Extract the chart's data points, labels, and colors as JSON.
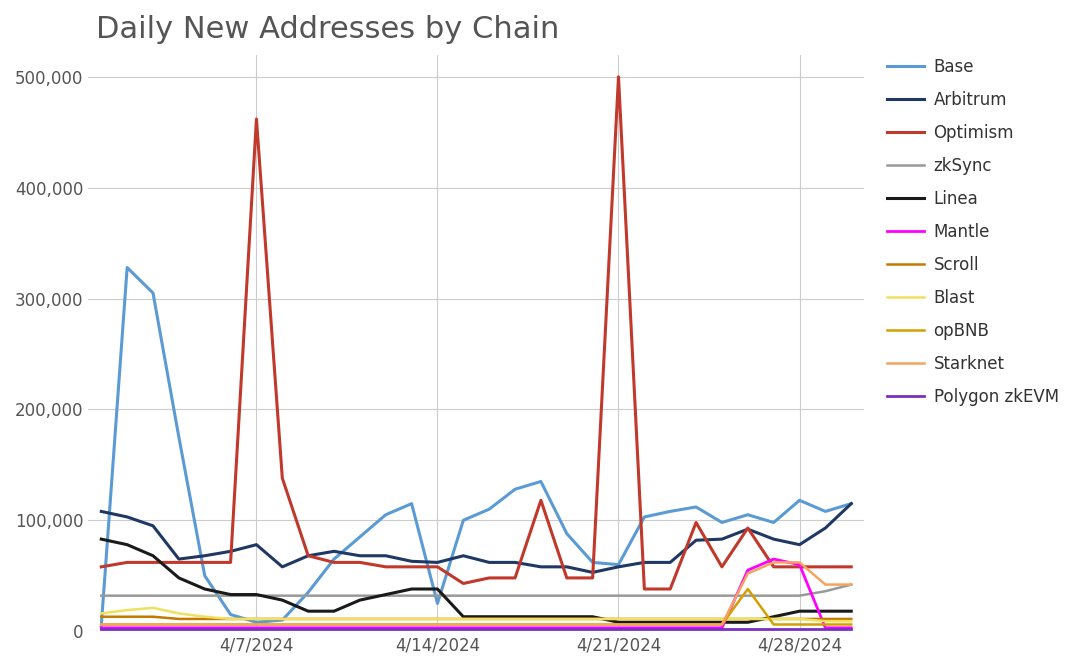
{
  "title": "Daily New Addresses by Chain",
  "title_fontsize": 22,
  "background_color": "#ffffff",
  "dates_count": 30,
  "xtick_positions": [
    6,
    13,
    20,
    27
  ],
  "xtick_labels": [
    "4/7/2024",
    "4/14/2024",
    "4/21/2024",
    "4/28/2024"
  ],
  "ylim": [
    0,
    520000
  ],
  "yticks": [
    0,
    100000,
    200000,
    300000,
    400000,
    500000
  ],
  "series": [
    {
      "name": "Base",
      "color": "#5b9bd5",
      "linewidth": 2.2,
      "values": [
        5000,
        328000,
        305000,
        175000,
        50000,
        15000,
        8000,
        10000,
        35000,
        65000,
        85000,
        105000,
        115000,
        25000,
        100000,
        110000,
        128000,
        135000,
        88000,
        62000,
        60000,
        103000,
        108000,
        112000,
        98000,
        105000,
        98000,
        118000,
        108000,
        115000
      ]
    },
    {
      "name": "Arbitrum",
      "color": "#1f3864",
      "linewidth": 2.2,
      "values": [
        108000,
        103000,
        95000,
        65000,
        68000,
        72000,
        78000,
        58000,
        68000,
        72000,
        68000,
        68000,
        63000,
        62000,
        68000,
        62000,
        62000,
        58000,
        58000,
        53000,
        58000,
        62000,
        62000,
        82000,
        83000,
        92000,
        83000,
        78000,
        93000,
        115000
      ]
    },
    {
      "name": "Optimism",
      "color": "#c0392b",
      "linewidth": 2.2,
      "values": [
        58000,
        62000,
        62000,
        62000,
        62000,
        62000,
        462000,
        138000,
        68000,
        62000,
        62000,
        58000,
        58000,
        58000,
        43000,
        48000,
        48000,
        118000,
        48000,
        48000,
        500000,
        38000,
        38000,
        98000,
        58000,
        93000,
        58000,
        58000,
        58000,
        58000
      ]
    },
    {
      "name": "zkSync",
      "color": "#999999",
      "linewidth": 1.8,
      "values": [
        32000,
        32000,
        32000,
        32000,
        32000,
        32000,
        32000,
        32000,
        32000,
        32000,
        32000,
        32000,
        32000,
        32000,
        32000,
        32000,
        32000,
        32000,
        32000,
        32000,
        32000,
        32000,
        32000,
        32000,
        32000,
        32000,
        32000,
        32000,
        36000,
        42000
      ]
    },
    {
      "name": "Linea",
      "color": "#1a1a1a",
      "linewidth": 2.2,
      "values": [
        83000,
        78000,
        68000,
        48000,
        38000,
        33000,
        33000,
        28000,
        18000,
        18000,
        28000,
        33000,
        38000,
        38000,
        13000,
        13000,
        13000,
        13000,
        13000,
        13000,
        8000,
        8000,
        8000,
        8000,
        8000,
        8000,
        13000,
        18000,
        18000,
        18000
      ]
    },
    {
      "name": "Mantle",
      "color": "#ff00ff",
      "linewidth": 2.0,
      "values": [
        3000,
        3000,
        3000,
        3000,
        3000,
        3000,
        3000,
        3000,
        3000,
        3000,
        3000,
        3000,
        3000,
        3000,
        3000,
        3000,
        3000,
        3000,
        3000,
        3000,
        3000,
        3000,
        3000,
        3000,
        3000,
        55000,
        65000,
        60000,
        3000,
        3000
      ]
    },
    {
      "name": "Scroll",
      "color": "#c47a00",
      "linewidth": 1.8,
      "values": [
        13000,
        13000,
        13000,
        11000,
        11000,
        11000,
        11000,
        11000,
        11000,
        11000,
        11000,
        11000,
        11000,
        11000,
        11000,
        11000,
        11000,
        11000,
        11000,
        11000,
        11000,
        11000,
        11000,
        11000,
        11000,
        11000,
        11000,
        11000,
        11000,
        11000
      ]
    },
    {
      "name": "Blast",
      "color": "#f0e060",
      "linewidth": 1.8,
      "values": [
        16000,
        19000,
        21000,
        16000,
        13000,
        11000,
        11000,
        11000,
        11000,
        11000,
        11000,
        11000,
        11000,
        11000,
        11000,
        11000,
        11000,
        11000,
        11000,
        11000,
        11000,
        11000,
        11000,
        11000,
        11000,
        11000,
        11000,
        11000,
        9000,
        9000
      ]
    },
    {
      "name": "opBNB",
      "color": "#d4a000",
      "linewidth": 1.8,
      "values": [
        6000,
        6000,
        6000,
        6000,
        6000,
        6000,
        6000,
        6000,
        6000,
        6000,
        6000,
        6000,
        6000,
        6000,
        6000,
        6000,
        6000,
        6000,
        6000,
        6000,
        6000,
        6000,
        6000,
        6000,
        6000,
        38000,
        6000,
        6000,
        6000,
        6000
      ]
    },
    {
      "name": "Starknet",
      "color": "#f4a460",
      "linewidth": 1.8,
      "values": [
        6000,
        6000,
        6000,
        6000,
        6000,
        6000,
        6000,
        6000,
        6000,
        6000,
        6000,
        6000,
        6000,
        6000,
        6000,
        6000,
        6000,
        6000,
        6000,
        6000,
        6000,
        6000,
        6000,
        6000,
        6000,
        52000,
        62000,
        62000,
        42000,
        42000
      ]
    },
    {
      "name": "Polygon zkEVM",
      "color": "#7b2fbe",
      "linewidth": 2.0,
      "values": [
        2000,
        2000,
        2000,
        2000,
        2000,
        2000,
        2000,
        2000,
        2000,
        2000,
        2000,
        2000,
        2000,
        2000,
        2000,
        2000,
        2000,
        2000,
        2000,
        2000,
        2000,
        2000,
        2000,
        2000,
        2000,
        2000,
        2000,
        2000,
        2000,
        2000
      ]
    }
  ]
}
